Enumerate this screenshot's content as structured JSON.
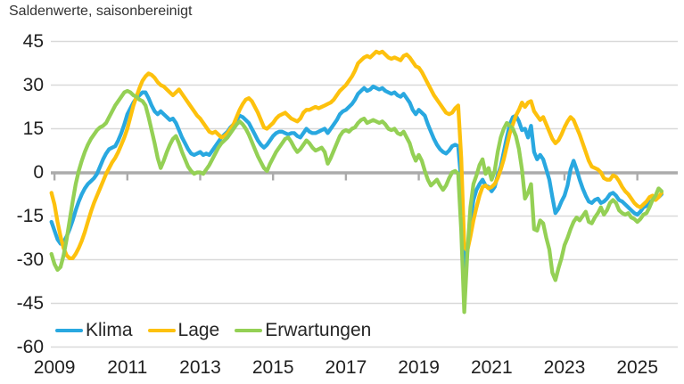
{
  "title": "Saldenwerte, saisonbereinigt",
  "legend": [
    {
      "label": "Klima",
      "color": "#29A8E0"
    },
    {
      "label": "Lage",
      "color": "#FDC10D"
    },
    {
      "label": "Erwartungen",
      "color": "#94D055"
    }
  ],
  "y_axis": {
    "tick_labels": [
      "45",
      "30",
      "15",
      "0",
      "-15",
      "-30",
      "-45",
      "-60"
    ],
    "tick_values": [
      45,
      30,
      15,
      0,
      -15,
      -30,
      -45,
      -60
    ]
  },
  "x_axis": {
    "tick_labels": [
      "2009",
      "2011",
      "2013",
      "2015",
      "2017",
      "2019",
      "2021",
      "2023",
      "2025"
    ]
  },
  "colors": {
    "gridline": "#D9D9D9",
    "zero_axis": "#ABABAB",
    "klima": "#29A8E0",
    "lage": "#FDC10D",
    "erwartungen": "#94D055"
  },
  "chart_data": {
    "type": "line",
    "title": "Saldenwerte, saisonbereinigt",
    "x_start": "2008-12",
    "x_end": "2025-09",
    "frequency": "monthly",
    "ylim": [
      -60,
      45
    ],
    "yticks": [
      45,
      30,
      15,
      0,
      -15,
      -30,
      -45,
      -60
    ],
    "xticks": [
      2009,
      2011,
      2013,
      2015,
      2017,
      2019,
      2021,
      2023,
      2025
    ],
    "grid": "horizontal",
    "legend_position": "bottom-left-inside",
    "series": [
      {
        "name": "Klima",
        "color": "#29A8E0",
        "values": [
          -17,
          -20,
          -23,
          -24.5,
          -24,
          -22,
          -19.5,
          -16.5,
          -13,
          -10,
          -7.5,
          -5.5,
          -4,
          -3,
          -2,
          -0.5,
          2,
          4.5,
          6.5,
          8,
          8.5,
          9,
          11,
          13.5,
          16.5,
          20,
          22,
          24,
          25.5,
          26.5,
          27.5,
          27.5,
          25.5,
          23,
          21,
          20,
          21,
          20,
          19,
          18,
          18.5,
          17,
          14.5,
          12,
          10,
          8,
          6.5,
          6,
          6.5,
          7,
          6,
          6.5,
          6,
          7.5,
          9,
          10.5,
          12,
          13,
          14,
          15.5,
          16.5,
          18,
          19.5,
          19,
          18,
          17,
          15,
          13,
          11,
          9.5,
          8.5,
          9.5,
          11,
          12.5,
          13.5,
          14,
          14,
          13.5,
          13,
          13.5,
          13.5,
          12.5,
          12,
          13.5,
          15,
          14,
          13.5,
          13.5,
          14,
          14.5,
          15,
          13.5,
          15,
          16.5,
          18,
          20,
          21,
          21.5,
          22.5,
          23.5,
          25,
          27,
          28,
          29,
          28,
          28.5,
          29.5,
          29,
          28.5,
          29,
          28,
          27.5,
          27,
          27.5,
          26.5,
          26,
          27,
          25.5,
          24,
          21.5,
          20,
          21.5,
          20.5,
          19.5,
          16.5,
          14,
          11.5,
          9.5,
          8,
          7,
          6.5,
          7.5,
          9,
          9.5,
          9,
          -3,
          -35.5,
          -27,
          -17,
          -9.5,
          -6,
          -4,
          -2.5,
          -4.5,
          -5,
          -6.5,
          -5,
          -1,
          2,
          7,
          12,
          16.5,
          19,
          19.5,
          17.5,
          14.5,
          15,
          12,
          16,
          7,
          4.5,
          6,
          4.5,
          1,
          -2.5,
          -8.5,
          -14,
          -12.5,
          -10,
          -8,
          -4.5,
          1,
          4,
          1,
          -2.5,
          -5.5,
          -8,
          -10,
          -10.5,
          -9.5,
          -9,
          -10.5,
          -10,
          -9,
          -7.5,
          -7,
          -8,
          -9.5,
          -10,
          -11,
          -12,
          -13,
          -14,
          -14.5,
          -13.5,
          -12,
          -11.5,
          -10.5,
          -9.5,
          -9,
          -8.5,
          -7.5
        ]
      },
      {
        "name": "Lage",
        "color": "#FDC10D",
        "values": [
          -7,
          -11,
          -17,
          -22,
          -26,
          -28.5,
          -29.5,
          -29.5,
          -28,
          -26,
          -23.5,
          -20.5,
          -17,
          -13.5,
          -10.5,
          -8,
          -5.5,
          -3,
          -0.5,
          1.5,
          3.5,
          5,
          7,
          9.5,
          12,
          15,
          19,
          23,
          26,
          29,
          31.5,
          33,
          34,
          33.5,
          32.5,
          31,
          30,
          29.5,
          28.5,
          27.5,
          26.5,
          27.5,
          28.5,
          27,
          25.5,
          24,
          22.5,
          21,
          19.5,
          18.5,
          17,
          15.5,
          14,
          13.5,
          14,
          13,
          12,
          12.5,
          13.5,
          15,
          16.5,
          19,
          21.5,
          23.5,
          25,
          25.5,
          24.5,
          22.5,
          20.5,
          18,
          15.5,
          15,
          16,
          17,
          18.5,
          19.5,
          20,
          20.5,
          19.5,
          18.5,
          18,
          17.5,
          18.5,
          20.5,
          21.5,
          21.5,
          22,
          22.5,
          22,
          22.5,
          23,
          23.5,
          24,
          25,
          26.5,
          28,
          29,
          30,
          31.5,
          33,
          35,
          37.5,
          38.5,
          39.5,
          40,
          39.5,
          40.5,
          41.5,
          41,
          41.5,
          40.5,
          39.5,
          39,
          39.5,
          39,
          38.5,
          40,
          40.5,
          39.5,
          38,
          36.5,
          36,
          34.5,
          32.5,
          30.5,
          28.5,
          26.5,
          25,
          23.5,
          22,
          20.5,
          20,
          20.5,
          22,
          23,
          5,
          -25.5,
          -27,
          -22,
          -16.5,
          -12,
          -8,
          -5,
          -4.5,
          -5.5,
          -5,
          -4,
          -2,
          1,
          4.5,
          9,
          13.5,
          16.5,
          19.5,
          21.5,
          24,
          22.5,
          24,
          24.5,
          21,
          19.5,
          18,
          19,
          16.5,
          14,
          11.5,
          10,
          11,
          13,
          15.5,
          17.5,
          19,
          18,
          15.5,
          13,
          10,
          7,
          4,
          2,
          1.5,
          1,
          0,
          -2,
          -2.5,
          -2.5,
          -1,
          -1.5,
          -3,
          -5,
          -6.5,
          -7.5,
          -9,
          -10.5,
          -11.5,
          -12,
          -11,
          -10,
          -8.5,
          -8,
          -9.5,
          -8.5,
          -7
        ]
      },
      {
        "name": "Erwartungen",
        "color": "#94D055",
        "values": [
          -28,
          -31.5,
          -33.5,
          -32.5,
          -28.5,
          -23,
          -16.5,
          -10,
          -4,
          0.5,
          4,
          7,
          9.5,
          11.5,
          13,
          14.5,
          15.5,
          16,
          17,
          19,
          21,
          23,
          24.5,
          26,
          27.5,
          28,
          27.5,
          26.5,
          26,
          25,
          24.5,
          23,
          19,
          14.5,
          10,
          5,
          1.5,
          4,
          7,
          9.5,
          11.5,
          12.5,
          10,
          7,
          4.5,
          2,
          0.5,
          -0.5,
          0,
          0,
          -0.5,
          1,
          2.5,
          4.5,
          6.5,
          8.5,
          10,
          11,
          12,
          13.5,
          15,
          16.5,
          17.5,
          16.5,
          15,
          13,
          10.5,
          8,
          5.5,
          3.5,
          1.5,
          0.5,
          3,
          5,
          7,
          8.5,
          10,
          11.5,
          12,
          10.5,
          8.5,
          7,
          8,
          9.5,
          11,
          10,
          8.5,
          7.5,
          8,
          8.5,
          7,
          3,
          5,
          7.5,
          10,
          12.5,
          14,
          14.5,
          14,
          15,
          15.5,
          17,
          18,
          18.5,
          17,
          17.5,
          18,
          17.5,
          17,
          17.5,
          16.5,
          15,
          14.5,
          15,
          13.5,
          13,
          14,
          12,
          10,
          6.5,
          4,
          6,
          4,
          0.5,
          -2.5,
          -4.5,
          -3.5,
          -2.5,
          -4.5,
          -6,
          -4.5,
          -2,
          0,
          0.5,
          -0.5,
          -20,
          -48,
          -28,
          -12,
          -4,
          -1,
          2.5,
          4.5,
          -0.5,
          1.5,
          -2.5,
          0.5,
          7,
          12,
          15,
          17,
          16,
          15,
          12.5,
          8,
          1,
          -9,
          -7,
          -4,
          -19.5,
          -20,
          -16.5,
          -17.5,
          -22.5,
          -26.5,
          -34.5,
          -37,
          -33,
          -29.5,
          -25,
          -22.5,
          -19.5,
          -17,
          -15.5,
          -16.5,
          -15,
          -13.5,
          -17,
          -17.5,
          -15.5,
          -14,
          -12,
          -14.5,
          -13,
          -10.5,
          -9.5,
          -10.5,
          -13,
          -14,
          -14.5,
          -14,
          -15.5,
          -16,
          -17,
          -16,
          -14.5,
          -14,
          -12,
          -9.5,
          -8,
          -5.5,
          -6.5
        ]
      }
    ]
  }
}
